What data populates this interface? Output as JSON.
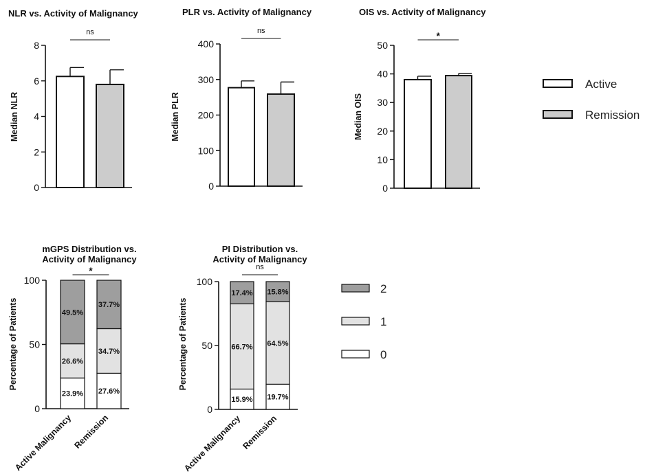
{
  "colors": {
    "active": "#ffffff",
    "remission": "#cccccc",
    "score2": "#9e9e9e",
    "score1": "#e2e2e2",
    "score0": "#ffffff",
    "stroke": "#111111"
  },
  "legend_top": {
    "items": [
      "Active",
      "Remission"
    ]
  },
  "legend_bottom": {
    "items": [
      "2",
      "1",
      "0"
    ]
  },
  "chart_data": [
    {
      "type": "bar",
      "title": "NLR vs. Activity of Malignancy",
      "ylabel": "Median NLR",
      "ylim": [
        0,
        8
      ],
      "yticks": [
        "0",
        "2",
        "4",
        "6",
        "8"
      ],
      "categories": [
        "Active",
        "Remission"
      ],
      "values": [
        6.25,
        5.8
      ],
      "error_upper": [
        6.75,
        6.62
      ],
      "significance": "ns"
    },
    {
      "type": "bar",
      "title": "PLR vs. Activity of Malignancy",
      "ylabel": "Median PLR",
      "ylim": [
        0,
        400
      ],
      "yticks": [
        "0",
        "100",
        "200",
        "300",
        "400"
      ],
      "categories": [
        "Active",
        "Remission"
      ],
      "values": [
        277,
        259
      ],
      "error_upper": [
        296,
        293
      ],
      "significance": "ns"
    },
    {
      "type": "bar",
      "title": "OIS vs. Activity of Malignancy",
      "ylabel": "Median OIS",
      "ylim": [
        0,
        50
      ],
      "yticks": [
        "0",
        "10",
        "20",
        "30",
        "40",
        "50"
      ],
      "categories": [
        "Active",
        "Remission"
      ],
      "values": [
        38.0,
        39.4
      ],
      "error_upper": [
        39.2,
        40.2
      ],
      "significance": "*"
    },
    {
      "type": "bar",
      "stacked": true,
      "title_lines": [
        "mGPS Distribution vs.",
        "Activity of Malignancy"
      ],
      "ylabel": "Percentage of Patients",
      "ylim": [
        0,
        100
      ],
      "yticks": [
        "0",
        "50",
        "100"
      ],
      "categories": [
        "Active Malignancy",
        "Remission"
      ],
      "series": [
        {
          "name": "0",
          "values": [
            23.9,
            27.6
          ],
          "labels": [
            "23.9%",
            "27.6%"
          ]
        },
        {
          "name": "1",
          "values": [
            26.6,
            34.7
          ],
          "labels": [
            "26.6%",
            "34.7%"
          ]
        },
        {
          "name": "2",
          "values": [
            49.5,
            37.7
          ],
          "labels": [
            "49.5%",
            "37.7%"
          ]
        }
      ],
      "significance": "*"
    },
    {
      "type": "bar",
      "stacked": true,
      "title_lines": [
        "PI Distribution vs.",
        "Activity of Malignancy"
      ],
      "ylabel": "Percentage of Patients",
      "ylim": [
        0,
        100
      ],
      "yticks": [
        "0",
        "50",
        "100"
      ],
      "categories": [
        "Active Malignancy",
        "Remission"
      ],
      "series": [
        {
          "name": "0",
          "values": [
            15.9,
            19.7
          ],
          "labels": [
            "15.9%",
            "19.7%"
          ]
        },
        {
          "name": "1",
          "values": [
            66.7,
            64.5
          ],
          "labels": [
            "66.7%",
            "64.5%"
          ]
        },
        {
          "name": "2",
          "values": [
            17.4,
            15.8
          ],
          "labels": [
            "17.4%",
            "15.8%"
          ]
        }
      ],
      "significance": "ns"
    }
  ]
}
